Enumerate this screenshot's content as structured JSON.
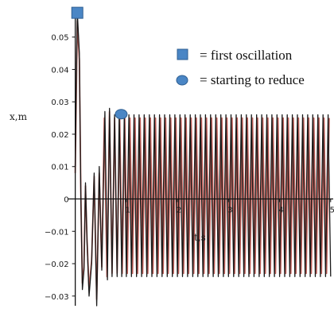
{
  "chart_data": {
    "type": "line",
    "xlabel": "t,s",
    "ylabel": "x,m",
    "xlim": [
      -0.15,
      5.05
    ],
    "ylim": [
      -0.033,
      0.059
    ],
    "x_ticks": [
      {
        "value": 1,
        "label": "1"
      },
      {
        "value": 2,
        "label": "2"
      },
      {
        "value": 3,
        "label": "3"
      },
      {
        "value": 4,
        "label": "4"
      },
      {
        "value": 5,
        "label": "5"
      }
    ],
    "y_ticks": [
      {
        "value": 0.05,
        "label": "0.05"
      },
      {
        "value": 0.04,
        "label": "0.04"
      },
      {
        "value": 0.03,
        "label": "0.03"
      },
      {
        "value": 0.02,
        "label": "0.02"
      },
      {
        "value": 0.01,
        "label": "0.01"
      },
      {
        "value": 0,
        "label": "0"
      },
      {
        "value": -0.01,
        "label": "−0.01"
      },
      {
        "value": -0.02,
        "label": "−0.02"
      },
      {
        "value": -0.03,
        "label": "−0.03"
      }
    ],
    "series": [
      {
        "color": "#1a1a1a",
        "x": [
          0.0,
          0.04,
          0.08,
          0.11,
          0.14,
          0.17,
          0.2,
          0.23,
          0.27,
          0.32,
          0.37,
          0.42,
          0.47,
          0.52,
          0.58,
          0.63,
          0.67,
          0.72,
          0.77,
          0.82,
          0.86,
          0.91,
          0.96,
          1.0,
          1.05,
          1.1,
          1.15,
          1.2,
          1.25,
          1.3,
          1.35,
          1.4,
          1.45,
          1.5,
          1.55,
          1.6,
          1.65,
          1.7,
          1.75,
          1.8,
          1.85,
          1.9,
          1.95,
          2.0,
          2.05,
          2.1,
          2.15,
          2.2,
          2.25,
          2.3,
          2.35,
          2.4,
          2.45,
          2.5,
          2.55,
          2.6,
          2.65,
          2.7,
          2.75,
          2.8,
          2.85,
          2.9,
          2.95,
          3.0,
          3.05,
          3.1,
          3.15,
          3.2,
          3.25,
          3.3,
          3.35,
          3.4,
          3.45,
          3.5,
          3.55,
          3.6,
          3.65,
          3.7,
          3.75,
          3.8,
          3.85,
          3.9,
          3.95,
          4.0,
          4.05,
          4.1,
          4.15,
          4.2,
          4.25,
          4.3,
          4.35,
          4.4,
          4.45,
          4.5,
          4.55,
          4.6,
          4.65,
          4.7,
          4.75,
          4.8,
          4.85,
          4.9,
          4.95,
          5.0
        ],
        "values": [
          0.01,
          0.058,
          0.045,
          0.0,
          -0.028,
          -0.022,
          0.005,
          -0.013,
          -0.03,
          -0.02,
          0.008,
          -0.033,
          0.01,
          -0.022,
          0.027,
          -0.025,
          0.028,
          -0.024,
          0.026,
          -0.024,
          0.027,
          -0.024,
          0.026,
          -0.024,
          0.026,
          -0.024,
          0.026,
          -0.024,
          0.026,
          -0.024,
          0.026,
          -0.024,
          0.026,
          -0.024,
          0.026,
          -0.024,
          0.026,
          -0.024,
          0.026,
          -0.024,
          0.026,
          -0.024,
          0.026,
          -0.024,
          0.026,
          -0.024,
          0.026,
          -0.024,
          0.026,
          -0.024,
          0.026,
          -0.024,
          0.026,
          -0.024,
          0.026,
          -0.024,
          0.026,
          -0.024,
          0.026,
          -0.024,
          0.026,
          -0.024,
          0.026,
          -0.024,
          0.026,
          -0.024,
          0.026,
          -0.024,
          0.026,
          -0.024,
          0.026,
          -0.024,
          0.026,
          -0.024,
          0.026,
          -0.024,
          0.026,
          -0.024,
          0.026,
          -0.024,
          0.026,
          -0.024,
          0.026,
          -0.024,
          0.026,
          -0.024,
          0.026,
          -0.024,
          0.026,
          -0.024,
          0.026,
          -0.024,
          0.026,
          -0.024,
          0.026,
          -0.024,
          0.026,
          -0.024,
          0.026,
          -0.024,
          0.026,
          -0.024,
          0.026,
          -0.024
        ]
      },
      {
        "color": "#c0605a",
        "x": [
          0.0,
          0.04,
          0.08,
          0.11,
          0.14,
          0.17,
          0.2,
          0.23,
          0.27,
          0.32,
          0.37,
          0.42,
          0.47,
          0.52,
          0.57,
          0.62,
          0.67,
          0.72,
          0.77,
          0.82,
          0.87,
          0.92,
          0.97,
          1.02,
          1.07,
          1.12,
          1.17,
          1.22,
          1.27,
          1.32,
          1.37,
          1.42,
          1.47,
          1.52,
          1.57,
          1.62,
          1.67,
          1.72,
          1.77,
          1.82,
          1.87,
          1.92,
          1.97,
          2.02,
          2.07,
          2.12,
          2.17,
          2.22,
          2.27,
          2.32,
          2.37,
          2.42,
          2.47,
          2.52,
          2.57,
          2.62,
          2.67,
          2.72,
          2.77,
          2.82,
          2.87,
          2.92,
          2.97,
          3.02,
          3.07,
          3.12,
          3.17,
          3.22,
          3.27,
          3.32,
          3.37,
          3.42,
          3.47,
          3.52,
          3.57,
          3.62,
          3.67,
          3.72,
          3.77,
          3.82,
          3.87,
          3.92,
          3.97,
          4.02,
          4.07,
          4.12,
          4.17,
          4.22,
          4.27,
          4.32,
          4.37,
          4.42,
          4.47,
          4.52,
          4.57,
          4.62,
          4.67,
          4.72,
          4.77,
          4.82,
          4.87,
          4.92,
          4.97
        ],
        "values": [
          0.008,
          0.055,
          0.043,
          0.001,
          -0.026,
          -0.021,
          0.004,
          -0.012,
          -0.028,
          -0.019,
          0.007,
          -0.031,
          0.008,
          -0.021,
          0.025,
          -0.024,
          0.027,
          -0.023,
          0.025,
          -0.023,
          0.025,
          -0.023,
          0.025,
          -0.023,
          0.025,
          -0.023,
          0.025,
          -0.023,
          0.025,
          -0.023,
          0.025,
          -0.023,
          0.025,
          -0.023,
          0.025,
          -0.023,
          0.025,
          -0.023,
          0.025,
          -0.023,
          0.025,
          -0.023,
          0.025,
          -0.023,
          0.025,
          -0.023,
          0.025,
          -0.023,
          0.025,
          -0.023,
          0.025,
          -0.023,
          0.025,
          -0.023,
          0.025,
          -0.023,
          0.025,
          -0.023,
          0.025,
          -0.023,
          0.025,
          -0.023,
          0.025,
          -0.023,
          0.025,
          -0.023,
          0.025,
          -0.023,
          0.025,
          -0.023,
          0.025,
          -0.023,
          0.025,
          -0.023,
          0.025,
          -0.023,
          0.025,
          -0.023,
          0.025,
          -0.023,
          0.025,
          -0.023,
          0.025,
          -0.023,
          0.025,
          -0.023,
          0.025,
          -0.023,
          0.025,
          -0.023,
          0.025,
          -0.023,
          0.025,
          -0.023,
          0.025,
          -0.023,
          0.025,
          -0.023,
          0.025,
          -0.023,
          0.025,
          -0.023,
          0.025
        ]
      }
    ],
    "markers": [
      {
        "shape": "square",
        "x": 0.04,
        "y": 0.0575,
        "color": "#4a86c5"
      },
      {
        "shape": "circle",
        "x": 0.9,
        "y": 0.0262,
        "color": "#4a86c5"
      }
    ],
    "legend": {
      "position": "top-right",
      "entries": [
        {
          "shape": "square",
          "color": "#4a86c5",
          "text": "= first oscillation"
        },
        {
          "shape": "circle",
          "color": "#4a86c5",
          "text": "= starting to reduce"
        }
      ]
    },
    "grid": false
  }
}
